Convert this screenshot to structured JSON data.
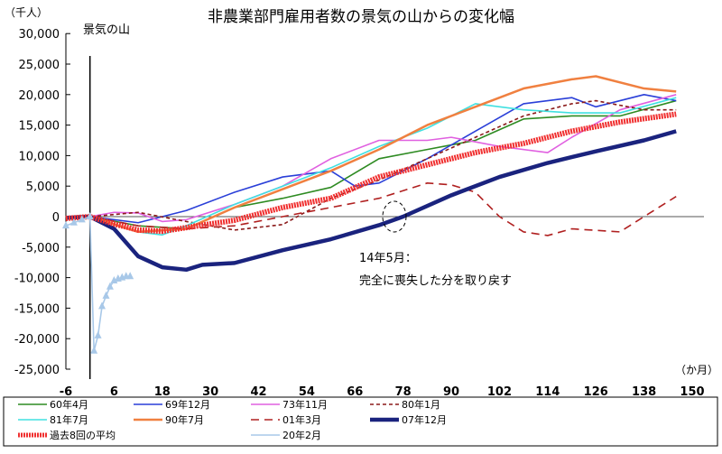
{
  "chart_data": {
    "type": "line",
    "title": "非農業部門雇用者数の景気の山からの変化幅",
    "yunit": "（千人）",
    "xunit": "（か月）",
    "peak_label": "景気の山",
    "annotation": [
      "14年5月：",
      "完全に喪失した分を取り戻す"
    ],
    "xlim": [
      -6,
      150
    ],
    "ylim": [
      -25000,
      30000
    ],
    "xticks": [
      -6,
      6,
      18,
      30,
      42,
      54,
      66,
      78,
      90,
      102,
      114,
      126,
      138,
      150
    ],
    "yticks": [
      30000,
      25000,
      20000,
      15000,
      10000,
      5000,
      0,
      -5000,
      -10000,
      -15000,
      -20000,
      -25000
    ],
    "ytick_labels": [
      "30,000",
      "25,000",
      "20,000",
      "15,000",
      "10,000",
      "5,000",
      "0",
      "-5,000",
      "-10,000",
      "-15,000",
      "-20,000",
      "-25,000"
    ],
    "series": [
      {
        "name": "60年4月",
        "color": "#2e8b22",
        "style": "solid",
        "x": [
          -6,
          0,
          12,
          24,
          36,
          48,
          60,
          72,
          84,
          96,
          108,
          120,
          132,
          146
        ],
        "y": [
          -200,
          0,
          -1500,
          -2000,
          1500,
          3000,
          4800,
          9500,
          11000,
          12500,
          16000,
          16500,
          16500,
          19000
        ]
      },
      {
        "name": "69年12月",
        "color": "#2a3fd8",
        "style": "plus",
        "x": [
          -6,
          0,
          12,
          24,
          36,
          48,
          60,
          66,
          72,
          84,
          96,
          108,
          120,
          126,
          138,
          146
        ],
        "y": [
          -200,
          0,
          -1000,
          1000,
          4000,
          6500,
          7500,
          5000,
          5500,
          9500,
          14000,
          18500,
          19500,
          18000,
          20000,
          19000
        ]
      },
      {
        "name": "73年11月",
        "color": "#e060e0",
        "style": "solid",
        "x": [
          -6,
          0,
          6,
          12,
          18,
          24,
          36,
          48,
          60,
          72,
          84,
          90,
          102,
          114,
          120,
          132,
          146
        ],
        "y": [
          -200,
          0,
          700,
          600,
          -800,
          -500,
          2000,
          5000,
          9500,
          12500,
          12500,
          13000,
          11500,
          10500,
          13000,
          17500,
          20000
        ]
      },
      {
        "name": "80年1月",
        "color": "#8b1a1a",
        "style": "dotted",
        "x": [
          -6,
          0,
          12,
          24,
          36,
          48,
          60,
          72,
          84,
          96,
          108,
          120,
          126,
          138,
          146
        ],
        "y": [
          -200,
          0,
          700,
          -800,
          -2200,
          -1300,
          3000,
          6000,
          9500,
          13000,
          16500,
          18500,
          19000,
          17500,
          17500
        ]
      },
      {
        "name": "81年7月",
        "color": "#40e0e0",
        "style": "circle",
        "x": [
          -6,
          0,
          12,
          18,
          24,
          36,
          48,
          60,
          72,
          84,
          96,
          108,
          120,
          132,
          146
        ],
        "y": [
          -200,
          0,
          -2500,
          -3000,
          -1500,
          2000,
          5000,
          8000,
          11500,
          14500,
          18500,
          17500,
          17000,
          17000,
          19500
        ]
      },
      {
        "name": "90年7月",
        "color": "#7a2a8a",
        "style": "square",
        "x": [
          -6,
          0,
          12,
          24,
          36,
          48,
          60,
          72,
          84,
          96,
          108,
          120,
          126,
          138,
          146
        ],
        "y": [
          -200,
          0,
          -2500,
          -2000,
          1500,
          4500,
          7500,
          11000,
          15000,
          18000,
          21000,
          22500,
          23000,
          21000,
          20500
        ]
      },
      {
        "name": "01年3月",
        "color": "#b02020",
        "style": "dashed",
        "x": [
          -6,
          0,
          12,
          24,
          36,
          48,
          60,
          72,
          84,
          90,
          96,
          102,
          108,
          114,
          120,
          132,
          138,
          146
        ],
        "y": [
          -200,
          0,
          -1500,
          -2000,
          -1500,
          0,
          1500,
          3000,
          5500,
          5200,
          4000,
          0,
          -2500,
          -3100,
          -2000,
          -2500,
          0,
          3300
        ]
      },
      {
        "name": "07年12月",
        "color": "#1a237e",
        "style": "thick",
        "x": [
          -6,
          0,
          6,
          12,
          18,
          24,
          28,
          36,
          48,
          60,
          72,
          78,
          90,
          102,
          114,
          126,
          138,
          146
        ],
        "y": [
          -200,
          0,
          -2000,
          -6500,
          -8300,
          -8700,
          -7900,
          -7600,
          -5500,
          -3700,
          -1400,
          0,
          3500,
          6500,
          8800,
          10700,
          12500,
          14000
        ]
      },
      {
        "name": "過去8回の平均",
        "color": "#f03030",
        "style": "hatched",
        "x": [
          -6,
          0,
          6,
          12,
          18,
          24,
          36,
          48,
          60,
          72,
          84,
          96,
          108,
          120,
          132,
          146
        ],
        "y": [
          -300,
          0,
          -1200,
          -2200,
          -2400,
          -1800,
          -600,
          1500,
          3000,
          6500,
          8500,
          10500,
          12000,
          14000,
          15500,
          16800
        ]
      },
      {
        "name": "20年2月",
        "color": "#a8c8e8",
        "style": "triangle",
        "x": [
          -6,
          -4,
          -2,
          0,
          1,
          2,
          3,
          4,
          5,
          6,
          7,
          8,
          9,
          10
        ],
        "y": [
          -1500,
          -1000,
          -500,
          0,
          -22000,
          -19500,
          -14700,
          -13000,
          -11500,
          -10500,
          -10200,
          -10000,
          -9800,
          -9800
        ]
      }
    ]
  }
}
